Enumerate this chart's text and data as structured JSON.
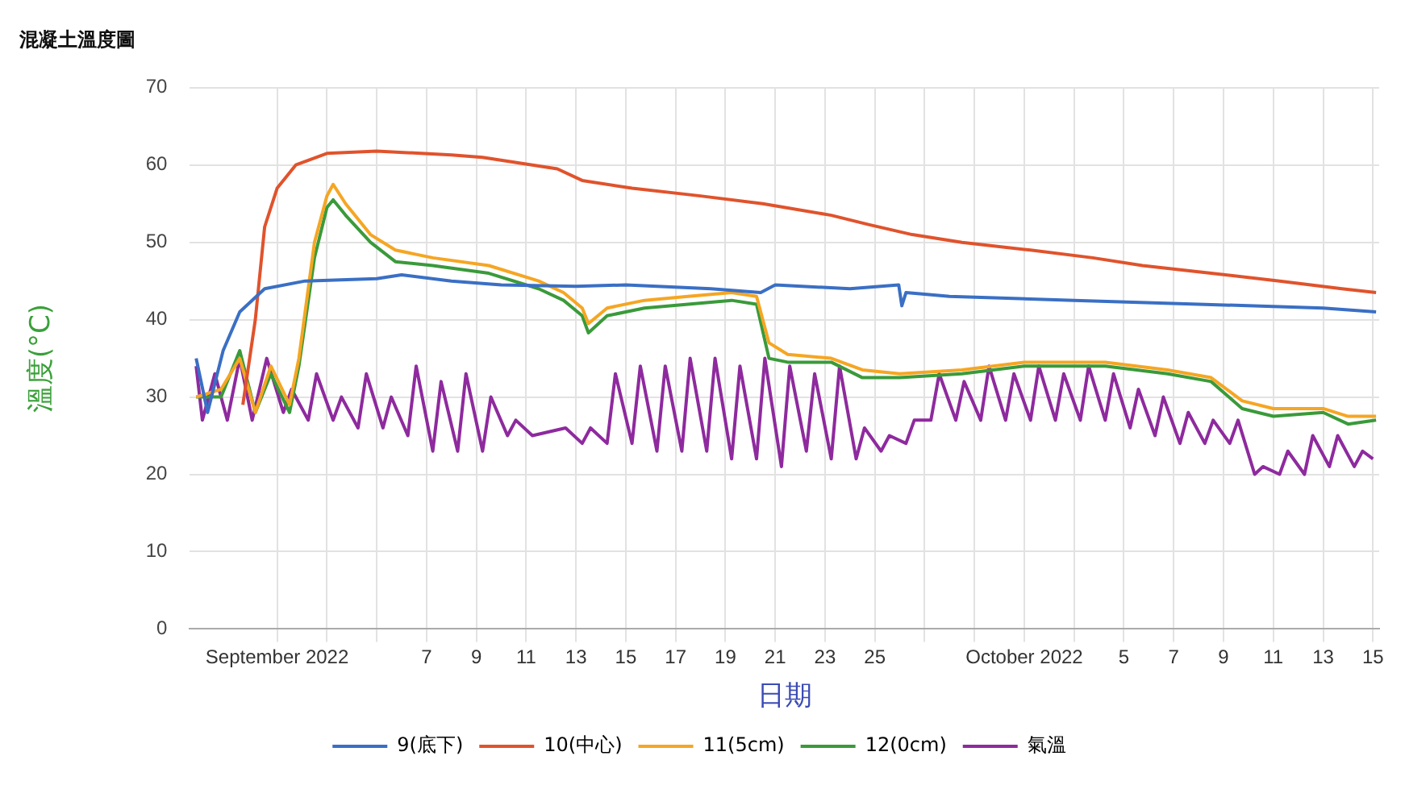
{
  "chart_data": {
    "type": "line",
    "title": "混凝土溫度圖",
    "xlabel": "日期",
    "ylabel": "溫度(°C)",
    "xlim": [
      "2022-08-28T12:00",
      "2022-10-15T06:00"
    ],
    "xticks": [
      {
        "value": "2022-09-01",
        "label": "September 2022"
      },
      {
        "value": "2022-09-03",
        "label": null
      },
      {
        "value": "2022-09-05",
        "label": null
      },
      {
        "value": "2022-09-07",
        "label": "7"
      },
      {
        "value": "2022-09-09",
        "label": "9"
      },
      {
        "value": "2022-09-11",
        "label": "11"
      },
      {
        "value": "2022-09-13",
        "label": "13"
      },
      {
        "value": "2022-09-15",
        "label": "15"
      },
      {
        "value": "2022-09-17",
        "label": "17"
      },
      {
        "value": "2022-09-19",
        "label": "19"
      },
      {
        "value": "2022-09-21",
        "label": "21"
      },
      {
        "value": "2022-09-23",
        "label": "23"
      },
      {
        "value": "2022-09-25",
        "label": "25"
      },
      {
        "value": "2022-09-27",
        "label": null
      },
      {
        "value": "2022-09-29",
        "label": null
      },
      {
        "value": "2022-10-01",
        "label": "October 2022"
      },
      {
        "value": "2022-10-03",
        "label": null
      },
      {
        "value": "2022-10-05",
        "label": "5"
      },
      {
        "value": "2022-10-07",
        "label": "7"
      },
      {
        "value": "2022-10-09",
        "label": "9"
      },
      {
        "value": "2022-10-11",
        "label": "11"
      },
      {
        "value": "2022-10-13",
        "label": "13"
      },
      {
        "value": "2022-10-15",
        "label": "15"
      }
    ],
    "ylim": [
      0,
      70
    ],
    "yticks": [
      0,
      10,
      20,
      30,
      40,
      50,
      60,
      70
    ],
    "grid": true,
    "legend": "bottom",
    "marker": "none",
    "line_style": "solid",
    "series": [
      {
        "name": "9(底下)",
        "color": "#3a6fc4",
        "x": [
          "2022-08-28T18:00",
          "2022-08-29T05:00",
          "2022-08-29T20:00",
          "2022-08-30T12:00",
          "2022-08-31T12:00",
          "2022-09-02T03:00",
          "2022-09-05T00:00",
          "2022-09-06T00:00",
          "2022-09-08T00:00",
          "2022-09-10T00:00",
          "2022-09-13T00:00",
          "2022-09-15T00:00",
          "2022-09-18T10:00",
          "2022-09-20T10:00",
          "2022-09-21T00:00",
          "2022-09-24T00:00",
          "2022-09-25T23:00",
          "2022-09-26T02:00",
          "2022-09-26T06:00",
          "2022-09-28T00:00",
          "2022-10-03T00:00",
          "2022-10-08T00:00",
          "2022-10-13T00:00",
          "2022-10-15T03:00"
        ],
        "values": [
          35,
          28,
          36,
          41,
          44,
          45,
          45.3,
          45.8,
          45,
          44.5,
          44.3,
          44.5,
          44,
          43.5,
          44.5,
          44,
          44.5,
          41.8,
          43.5,
          43,
          42.5,
          42,
          41.5,
          41
        ]
      },
      {
        "name": "10(中心)",
        "color": "#e0532c",
        "x": [
          "2022-08-30T15:00",
          "2022-08-31T03:00",
          "2022-08-31T12:00",
          "2022-09-01T00:00",
          "2022-09-01T18:00",
          "2022-09-03T00:00",
          "2022-09-05T00:00",
          "2022-09-08T00:00",
          "2022-09-09T06:00",
          "2022-09-11T06:00",
          "2022-09-12T06:00",
          "2022-09-13T06:00",
          "2022-09-15T06:00",
          "2022-09-18T00:00",
          "2022-09-20T12:00",
          "2022-09-23T06:00",
          "2022-09-24T18:00",
          "2022-09-26T12:00",
          "2022-09-28T12:00",
          "2022-10-01T06:00",
          "2022-10-03T18:00",
          "2022-10-05T18:00",
          "2022-10-08T12:00",
          "2022-10-11T06:00",
          "2022-10-13T18:00",
          "2022-10-15T03:00"
        ],
        "values": [
          29,
          40,
          52,
          57,
          60,
          61.5,
          61.8,
          61.3,
          61,
          60,
          59.5,
          58,
          57,
          56,
          55,
          53.5,
          52.3,
          51,
          50,
          49,
          48,
          47,
          46,
          45,
          44,
          43.5
        ]
      },
      {
        "name": "11(5cm)",
        "color": "#f5a623",
        "x": [
          "2022-08-28T18:00",
          "2022-08-29T18:00",
          "2022-08-30T12:00",
          "2022-08-31T03:00",
          "2022-08-31T18:00",
          "2022-09-01T12:00",
          "2022-09-01T21:00",
          "2022-09-02T12:00",
          "2022-09-03T00:00",
          "2022-09-03T06:00",
          "2022-09-03T18:00",
          "2022-09-04T18:00",
          "2022-09-05T18:00",
          "2022-09-07T06:00",
          "2022-09-09T12:00",
          "2022-09-11T12:00",
          "2022-09-12T12:00",
          "2022-09-13T06:00",
          "2022-09-13T12:00",
          "2022-09-14T06:00",
          "2022-09-15T18:00",
          "2022-09-17T12:00",
          "2022-09-19T06:00",
          "2022-09-20T06:00",
          "2022-09-20T18:00",
          "2022-09-21T12:00",
          "2022-09-23T06:00",
          "2022-09-24T12:00",
          "2022-09-26T00:00",
          "2022-09-28T12:00",
          "2022-10-01T00:00",
          "2022-10-04T06:00",
          "2022-10-06T18:00",
          "2022-10-08T12:00",
          "2022-10-09T18:00",
          "2022-10-11T00:00",
          "2022-10-13T00:00",
          "2022-10-14T00:00",
          "2022-10-15T03:00"
        ],
        "values": [
          30,
          31,
          35,
          28,
          34,
          29,
          35,
          50,
          56,
          57.5,
          55,
          51,
          49,
          48,
          47,
          45,
          43.5,
          41.5,
          39.5,
          41.5,
          42.5,
          43,
          43.5,
          43,
          37,
          35.5,
          35,
          33.5,
          33,
          33.5,
          34.5,
          34.5,
          33.5,
          32.5,
          29.5,
          28.5,
          28.5,
          27.5,
          27.5
        ]
      },
      {
        "name": "12(0cm)",
        "color": "#3a9a3a",
        "x": [
          "2022-08-28T18:00",
          "2022-08-29T18:00",
          "2022-08-30T12:00",
          "2022-08-31T03:00",
          "2022-08-31T18:00",
          "2022-09-01T12:00",
          "2022-09-01T21:00",
          "2022-09-02T12:00",
          "2022-09-03T00:00",
          "2022-09-03T06:00",
          "2022-09-03T18:00",
          "2022-09-04T18:00",
          "2022-09-05T18:00",
          "2022-09-07T06:00",
          "2022-09-09T12:00",
          "2022-09-11T12:00",
          "2022-09-12T12:00",
          "2022-09-13T06:00",
          "2022-09-13T12:00",
          "2022-09-14T06:00",
          "2022-09-15T18:00",
          "2022-09-17T12:00",
          "2022-09-19T06:00",
          "2022-09-20T06:00",
          "2022-09-20T18:00",
          "2022-09-21T12:00",
          "2022-09-23T06:00",
          "2022-09-24T12:00",
          "2022-09-26T00:00",
          "2022-09-28T12:00",
          "2022-10-01T00:00",
          "2022-10-04T06:00",
          "2022-10-06T18:00",
          "2022-10-08T12:00",
          "2022-10-09T18:00",
          "2022-10-11T00:00",
          "2022-10-13T00:00",
          "2022-10-14T00:00",
          "2022-10-15T03:00"
        ],
        "values": [
          30,
          30,
          36,
          28,
          33,
          28,
          34,
          48,
          54.5,
          55.5,
          53.5,
          50,
          47.5,
          47,
          46,
          44,
          42.5,
          40.5,
          38.3,
          40.5,
          41.5,
          42,
          42.5,
          42,
          35,
          34.5,
          34.5,
          32.5,
          32.5,
          33,
          34,
          34,
          33,
          32,
          28.5,
          27.5,
          28,
          26.5,
          27
        ]
      },
      {
        "name": "氣溫",
        "color": "#8e2a9e",
        "x": [
          "2022-08-28T18:00",
          "2022-08-29T00:00",
          "2022-08-29T12:00",
          "2022-08-30T00:00",
          "2022-08-30T12:00",
          "2022-08-31T00:00",
          "2022-08-31T14:00",
          "2022-09-01T06:00",
          "2022-09-01T14:00",
          "2022-09-02T06:00",
          "2022-09-02T14:00",
          "2022-09-03T06:00",
          "2022-09-03T14:00",
          "2022-09-04T06:00",
          "2022-09-04T14:00",
          "2022-09-05T06:00",
          "2022-09-05T14:00",
          "2022-09-06T06:00",
          "2022-09-06T14:00",
          "2022-09-07T06:00",
          "2022-09-07T14:00",
          "2022-09-08T06:00",
          "2022-09-08T14:00",
          "2022-09-09T06:00",
          "2022-09-09T14:00",
          "2022-09-10T06:00",
          "2022-09-10T14:00",
          "2022-09-11T06:00",
          "2022-09-12T14:00",
          "2022-09-13T06:00",
          "2022-09-13T14:00",
          "2022-09-14T06:00",
          "2022-09-14T14:00",
          "2022-09-15T06:00",
          "2022-09-15T14:00",
          "2022-09-16T06:00",
          "2022-09-16T14:00",
          "2022-09-17T06:00",
          "2022-09-17T14:00",
          "2022-09-18T06:00",
          "2022-09-18T14:00",
          "2022-09-19T06:00",
          "2022-09-19T14:00",
          "2022-09-20T06:00",
          "2022-09-20T14:00",
          "2022-09-21T06:00",
          "2022-09-21T14:00",
          "2022-09-22T06:00",
          "2022-09-22T14:00",
          "2022-09-23T06:00",
          "2022-09-23T14:00",
          "2022-09-24T06:00",
          "2022-09-24T14:00",
          "2022-09-25T06:00",
          "2022-09-25T14:00",
          "2022-09-26T06:00",
          "2022-09-26T14:00",
          "2022-09-27T06:00",
          "2022-09-27T14:00",
          "2022-09-28T06:00",
          "2022-09-28T14:00",
          "2022-09-29T06:00",
          "2022-09-29T14:00",
          "2022-09-30T06:00",
          "2022-09-30T14:00",
          "2022-10-01T06:00",
          "2022-10-01T14:00",
          "2022-10-02T06:00",
          "2022-10-02T14:00",
          "2022-10-03T06:00",
          "2022-10-03T14:00",
          "2022-10-04T06:00",
          "2022-10-04T14:00",
          "2022-10-05T06:00",
          "2022-10-05T14:00",
          "2022-10-06T06:00",
          "2022-10-06T14:00",
          "2022-10-07T06:00",
          "2022-10-07T14:00",
          "2022-10-08T06:00",
          "2022-10-08T14:00",
          "2022-10-09T06:00",
          "2022-10-09T14:00",
          "2022-10-10T06:00",
          "2022-10-10T14:00",
          "2022-10-11T06:00",
          "2022-10-11T14:00",
          "2022-10-12T06:00",
          "2022-10-12T14:00",
          "2022-10-13T06:00",
          "2022-10-13T14:00",
          "2022-10-14T06:00",
          "2022-10-14T14:00",
          "2022-10-15T00:00"
        ],
        "values": [
          34,
          27,
          33,
          27,
          35,
          27,
          35,
          28,
          31,
          27,
          33,
          27,
          30,
          26,
          33,
          26,
          30,
          25,
          34,
          23,
          32,
          23,
          33,
          23,
          30,
          25,
          27,
          25,
          26,
          24,
          26,
          24,
          33,
          24,
          34,
          23,
          34,
          23,
          35,
          23,
          35,
          22,
          34,
          22,
          35,
          21,
          34,
          23,
          33,
          22,
          34,
          22,
          26,
          23,
          25,
          24,
          27,
          27,
          33,
          27,
          32,
          27,
          34,
          27,
          33,
          27,
          34,
          27,
          33,
          27,
          34,
          27,
          33,
          26,
          31,
          25,
          30,
          24,
          28,
          24,
          27,
          24,
          27,
          20,
          21,
          20,
          23,
          20,
          25,
          21,
          25,
          21,
          23,
          22
        ]
      }
    ]
  }
}
